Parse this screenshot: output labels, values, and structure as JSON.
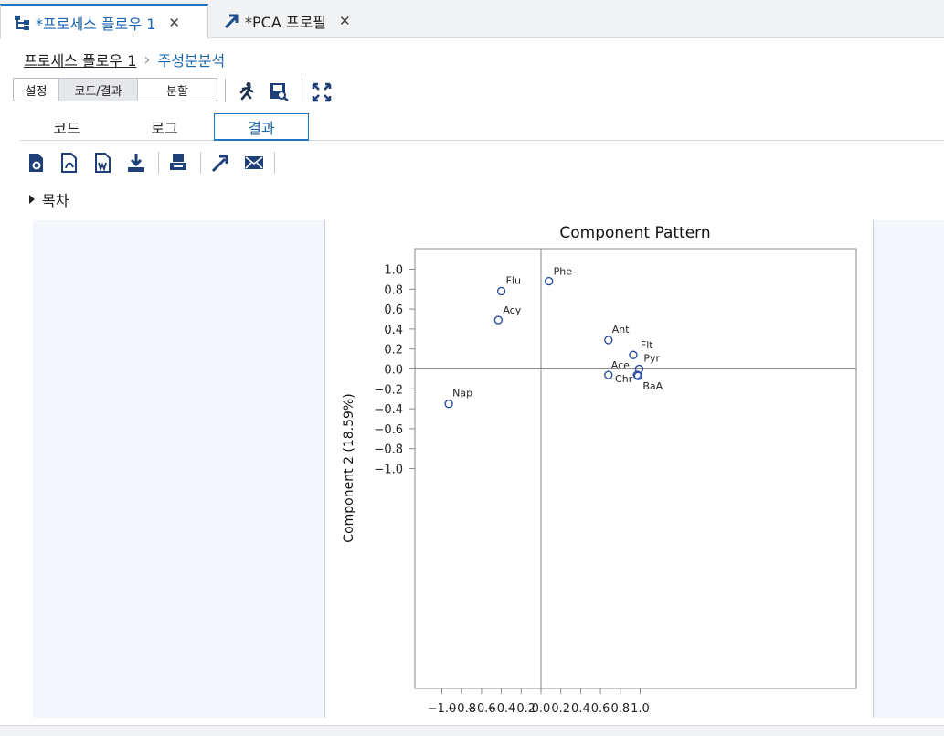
{
  "doc_tabs": [
    {
      "label": "*프로세스 플로우 1",
      "icon": "process-flow-icon",
      "active": true
    },
    {
      "label": "*PCA 프로필",
      "icon": "program-shortcut-icon",
      "active": false
    }
  ],
  "breadcrumb": {
    "parent": "프로세스 플로우 1",
    "current": "주성분분석"
  },
  "view_modes": [
    "설정",
    "코드/결과",
    "분할"
  ],
  "view_mode_selected": "코드/결과",
  "toolbar_icons": [
    "run-icon",
    "save-results-icon",
    "maximize-icon"
  ],
  "sub_tabs": [
    "코드",
    "로그",
    "결과"
  ],
  "sub_tab_active": "결과",
  "results_toolbar_icons": [
    "html-export-icon",
    "pdf-export-icon",
    "word-export-icon",
    "download-icon",
    "print-icon",
    "open-new-window-icon",
    "email-icon"
  ],
  "toc_label": "목차",
  "colors": {
    "accent": "#1e73c4",
    "marker": "#2b4fa0",
    "panel_bg": "#f3f6fb"
  },
  "chart_data": {
    "type": "scatter",
    "title": "Component Pattern",
    "ylabel": "Component 2 (18.59%)",
    "xlabel": "",
    "xlim": [
      -1.1,
      1.1
    ],
    "ylim": [
      -1.1,
      1.1
    ],
    "xticks": [
      "−1.0",
      "−0.8",
      "−0.6",
      "−0.4",
      "−0.2",
      "0.0",
      "0.2",
      "0.4",
      "0.6",
      "0.8",
      "1.0"
    ],
    "yticks": [
      "1.0",
      "0.8",
      "0.6",
      "0.4",
      "0.2",
      "0.0",
      "−0.2",
      "−0.4",
      "−0.6",
      "−0.8",
      "−1.0"
    ],
    "reference_lines": {
      "x": 0,
      "y": 0
    },
    "grid": false,
    "points": [
      {
        "label": "Phe",
        "x": 0.08,
        "y": 0.88
      },
      {
        "label": "Flu",
        "x": -0.4,
        "y": 0.78
      },
      {
        "label": "Acy",
        "x": -0.43,
        "y": 0.49
      },
      {
        "label": "Ant",
        "x": 0.68,
        "y": 0.29
      },
      {
        "label": "Flt",
        "x": 0.93,
        "y": 0.14
      },
      {
        "label": "Pyr",
        "x": 0.99,
        "y": 0.0
      },
      {
        "label": "Chr",
        "x": 0.97,
        "y": -0.06
      },
      {
        "label": "Ace",
        "x": 0.68,
        "y": -0.06
      },
      {
        "label": "BaA",
        "x": 0.98,
        "y": -0.07
      },
      {
        "label": "Nap",
        "x": -0.93,
        "y": -0.35
      }
    ]
  }
}
